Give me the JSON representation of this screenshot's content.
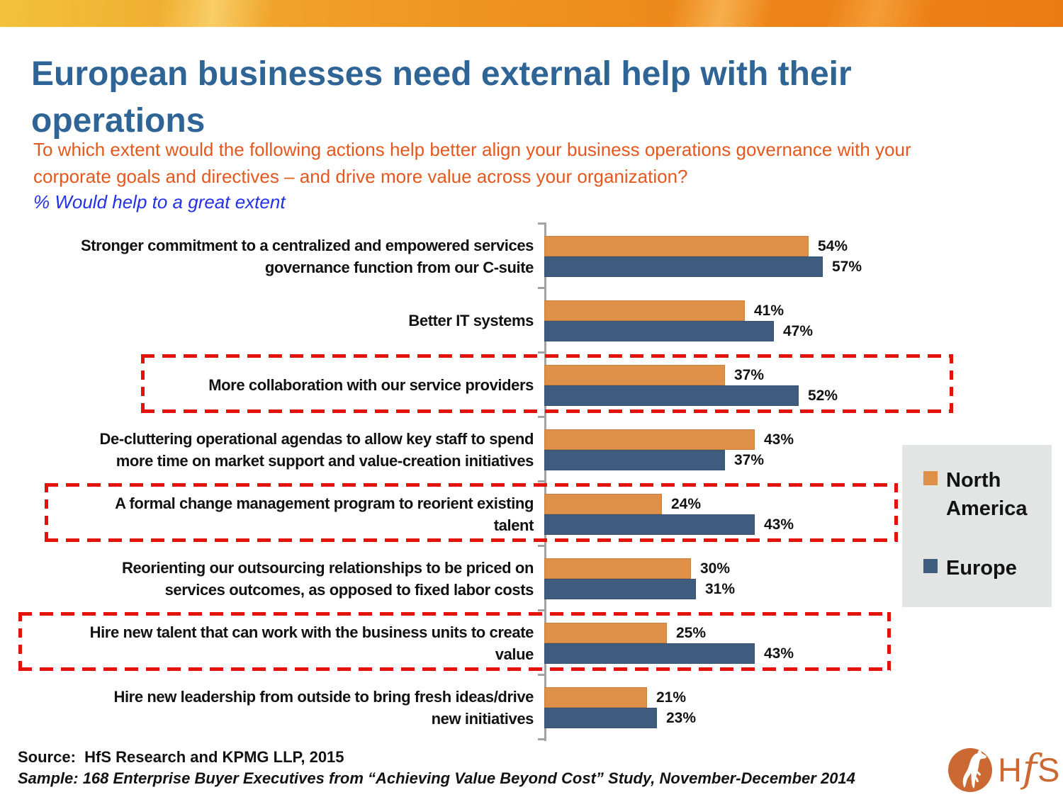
{
  "slide": {
    "title_line1": "European businesses need external help with their",
    "title_line2": "operations",
    "question_line1": "To which extent would the following actions help better align your business operations governance with your",
    "question_line2": "corporate goals and directives – and drive more value across your organization?",
    "subtitle": "% Would help to a great extent"
  },
  "palette": {
    "title": "#2E6496",
    "question": "#E4581E",
    "subtitle": "#2230E8",
    "highlight": "#E3120B",
    "axis": "#A3A3A3",
    "legend_bg": "#E3E4E4",
    "logo": "#CC6933",
    "text": "#121212"
  },
  "chart_data": {
    "type": "bar",
    "orientation": "horizontal",
    "unit": "%",
    "title": "% Would help to a great extent",
    "categories": [
      "Stronger commitment to a centralized and empowered services\ngovernance function from our C-suite",
      "Better IT systems",
      "More collaboration with our service providers",
      "De-cluttering operational agendas to allow key staff to spend\nmore time on market support and value-creation initiatives",
      "A formal change management program to reorient existing\ntalent",
      "Reorienting our outsourcing relationships to be priced on\nservices outcomes, as opposed to fixed labor costs",
      "Hire new talent that can work with the business units to create\nvalue",
      "Hire new leadership from outside to bring fresh ideas/drive\nnew initiatives"
    ],
    "series": [
      {
        "name": "North America",
        "color": "#DE9049",
        "values": [
          54,
          41,
          37,
          43,
          24,
          30,
          25,
          21
        ]
      },
      {
        "name": "Europe",
        "color": "#3F5B7D",
        "values": [
          57,
          47,
          52,
          37,
          43,
          31,
          43,
          23
        ]
      }
    ],
    "value_labels": [
      "54%",
      "41%",
      "37%",
      "43%",
      "24%",
      "30%",
      "25%",
      "21%",
      "57%",
      "47%",
      "52%",
      "37%",
      "43%",
      "31%",
      "43%",
      "23%"
    ],
    "highlighted_category_indices": [
      2,
      4,
      6
    ],
    "xlim": [
      0,
      100
    ],
    "grid": false,
    "legend_position": "right"
  },
  "legend": {
    "items": [
      {
        "label": "North America",
        "color": "#DE9049"
      },
      {
        "label": "Europe",
        "color": "#3F5B7D"
      }
    ]
  },
  "footer": {
    "source": "Source:  HfS Research and KPMG LLP, 2015",
    "sample": "Sample: 168 Enterprise Buyer Executives from “Achieving Value Beyond Cost” Study, November-December 2014"
  },
  "logo": {
    "text": "HfS"
  }
}
